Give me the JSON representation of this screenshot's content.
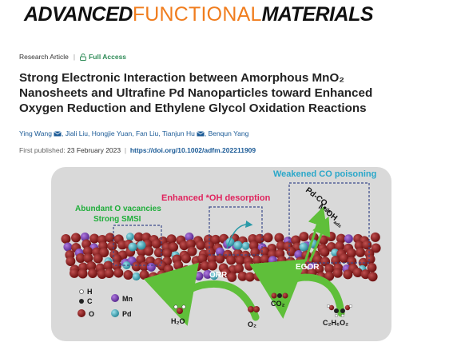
{
  "journal": {
    "part1": "ADVANCED",
    "part2": "FUNCTIONAL",
    "part3": "MATERIALS"
  },
  "article": {
    "type": "Research Article",
    "access": "Full Access",
    "title_lines": [
      "Strong Electronic Interaction between Amorphous MnO₂",
      "Nanosheets and Ultrafine Pd Nanoparticles toward Enhanced",
      "Oxygen Reduction and Ethylene Glycol Oxidation Reactions"
    ],
    "authors": [
      {
        "name": "Ying Wang",
        "corresponding": true
      },
      {
        "name": "Jiali Liu",
        "corresponding": false
      },
      {
        "name": "Hongjie Yuan",
        "corresponding": false
      },
      {
        "name": "Fan Liu",
        "corresponding": false
      },
      {
        "name": "Tianjun Hu",
        "corresponding": true
      },
      {
        "name": "Benqun Yang",
        "corresponding": false
      }
    ],
    "published_label": "First published:",
    "published_date": "23 February 2023",
    "doi": "https://doi.org/10.1002/adfm.202211909"
  },
  "graphic": {
    "label_weakened": "Weakened CO poisoning",
    "label_enhanced": "Enhanced *OH desorption",
    "label_vacancies": "Abundant O vacancies",
    "label_smsi": "Strong SMSI",
    "label_pdco": "Pd-CO",
    "label_pdco_sub": "ads",
    "label_moh": "M-OH",
    "label_moh_sub": "ads",
    "label_orr": "ORR",
    "label_egor": "EGOR",
    "legend_h": "H",
    "legend_c": "C",
    "legend_o": "O",
    "legend_mn": "Mn",
    "legend_pd": "Pd",
    "mol_h2o": "H₂O",
    "mol_o2": "O₂",
    "mol_co2": "CO₂",
    "mol_c2h6o2": "C₂H₆O₂",
    "colors": {
      "weakened": "#2aa7c9",
      "enhanced": "#e0245e",
      "vacancy": "#1fae3a",
      "arrow": "#5fbf3a",
      "o_atom": "#8b1a1a",
      "mn_atom": "#7b3fb8",
      "pd_atom": "#3aa8b8",
      "panel": "#d6d6d6"
    }
  }
}
